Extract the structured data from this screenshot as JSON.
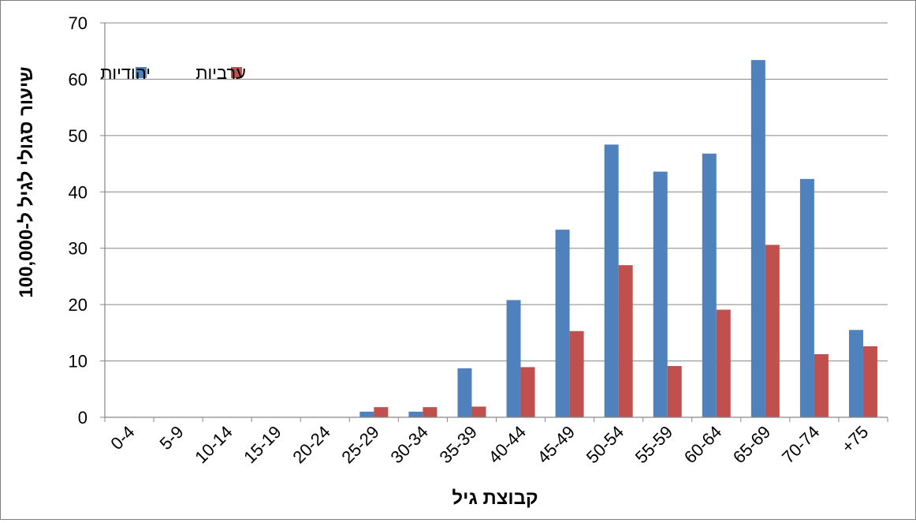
{
  "chart_data": {
    "type": "bar",
    "title": "",
    "xlabel": "קבוצת גיל",
    "ylabel": "שיעור סגולי לגיל ל-100,000",
    "ylim": [
      0,
      70
    ],
    "yticks": [
      0,
      10,
      20,
      30,
      40,
      50,
      60,
      70
    ],
    "grid": true,
    "legend_position": "top-left",
    "categories": [
      "0-4",
      "5-9",
      "10-14",
      "15-19",
      "20-24",
      "25-29",
      "30-34",
      "35-39",
      "40-44",
      "45-49",
      "50-54",
      "55-59",
      "60-64",
      "65-69",
      "70-74",
      "+75"
    ],
    "series": [
      {
        "name": "יהודיות",
        "color": "#4f81bd",
        "values": [
          0,
          0,
          0,
          0,
          0,
          1,
          1,
          8.7,
          20.8,
          33.3,
          48.4,
          43.6,
          46.8,
          63.4,
          42.3,
          15.5
        ]
      },
      {
        "name": "ערביות",
        "color": "#c0504d",
        "values": [
          0,
          0,
          0,
          0,
          0,
          1.8,
          1.8,
          1.9,
          8.9,
          15.3,
          27,
          9.1,
          19.1,
          30.6,
          11.2,
          12.6
        ]
      }
    ]
  }
}
